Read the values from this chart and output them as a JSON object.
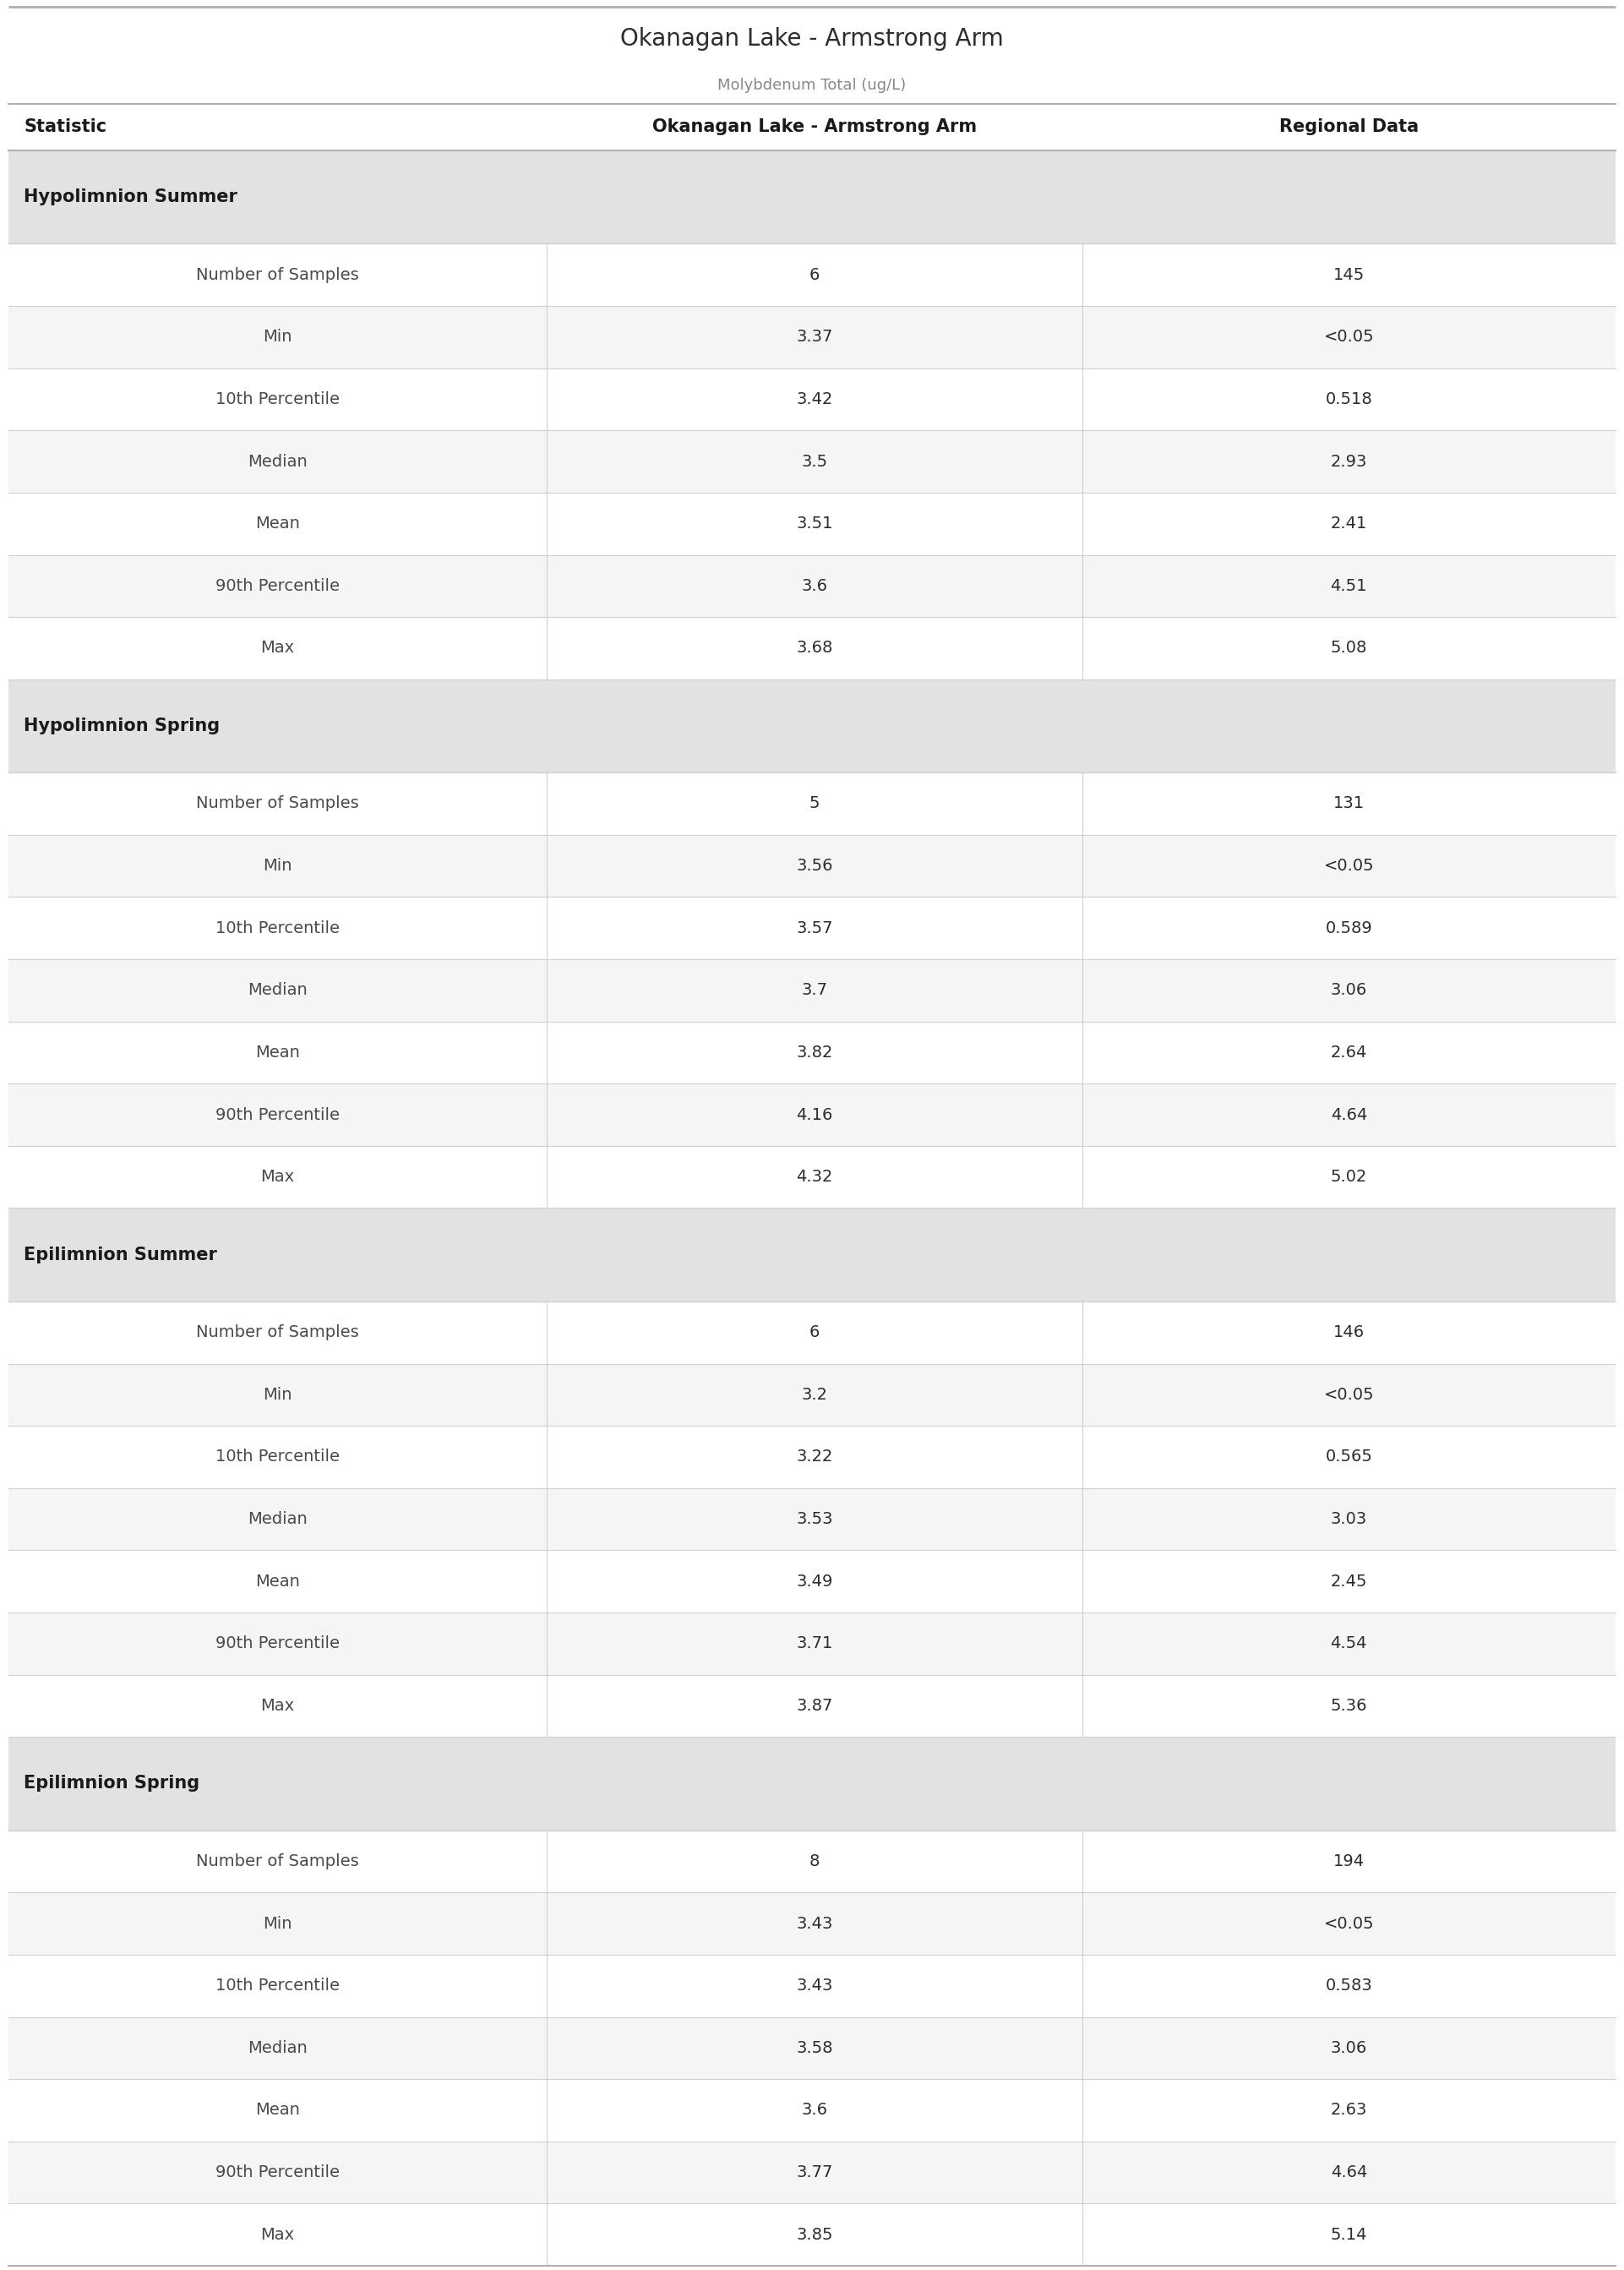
{
  "title": "Okanagan Lake - Armstrong Arm",
  "subtitle": "Molybdenum Total (ug/L)",
  "col_headers": [
    "Statistic",
    "Okanagan Lake - Armstrong Arm",
    "Regional Data"
  ],
  "sections": [
    {
      "label": "Hypolimnion Summer",
      "rows": [
        [
          "Number of Samples",
          "6",
          "145"
        ],
        [
          "Min",
          "3.37",
          "<0.05"
        ],
        [
          "10th Percentile",
          "3.42",
          "0.518"
        ],
        [
          "Median",
          "3.5",
          "2.93"
        ],
        [
          "Mean",
          "3.51",
          "2.41"
        ],
        [
          "90th Percentile",
          "3.6",
          "4.51"
        ],
        [
          "Max",
          "3.68",
          "5.08"
        ]
      ]
    },
    {
      "label": "Hypolimnion Spring",
      "rows": [
        [
          "Number of Samples",
          "5",
          "131"
        ],
        [
          "Min",
          "3.56",
          "<0.05"
        ],
        [
          "10th Percentile",
          "3.57",
          "0.589"
        ],
        [
          "Median",
          "3.7",
          "3.06"
        ],
        [
          "Mean",
          "3.82",
          "2.64"
        ],
        [
          "90th Percentile",
          "4.16",
          "4.64"
        ],
        [
          "Max",
          "4.32",
          "5.02"
        ]
      ]
    },
    {
      "label": "Epilimnion Summer",
      "rows": [
        [
          "Number of Samples",
          "6",
          "146"
        ],
        [
          "Min",
          "3.2",
          "<0.05"
        ],
        [
          "10th Percentile",
          "3.22",
          "0.565"
        ],
        [
          "Median",
          "3.53",
          "3.03"
        ],
        [
          "Mean",
          "3.49",
          "2.45"
        ],
        [
          "90th Percentile",
          "3.71",
          "4.54"
        ],
        [
          "Max",
          "3.87",
          "5.36"
        ]
      ]
    },
    {
      "label": "Epilimnion Spring",
      "rows": [
        [
          "Number of Samples",
          "8",
          "194"
        ],
        [
          "Min",
          "3.43",
          "<0.05"
        ],
        [
          "10th Percentile",
          "3.43",
          "0.583"
        ],
        [
          "Median",
          "3.58",
          "3.06"
        ],
        [
          "Mean",
          "3.6",
          "2.63"
        ],
        [
          "90th Percentile",
          "3.77",
          "4.64"
        ],
        [
          "Max",
          "3.85",
          "5.14"
        ]
      ]
    }
  ],
  "title_color": "#2c2c2c",
  "subtitle_color": "#888888",
  "header_text_color": "#1a1a1a",
  "section_bg_color": "#e2e2e2",
  "section_text_color": "#1a1a1a",
  "row_bg_even": "#f5f5f5",
  "row_bg_odd": "#ffffff",
  "data_text_color": "#2c2c2c",
  "stat_text_color": "#4a4a4a",
  "divider_color": "#d0d0d0",
  "top_border_color": "#b0b0b0",
  "header_divider_color": "#b0b0b0",
  "title_fontsize": 20,
  "subtitle_fontsize": 13,
  "header_fontsize": 15,
  "section_fontsize": 15,
  "data_fontsize": 14,
  "col_split1": 0.335,
  "col_split2": 0.668
}
